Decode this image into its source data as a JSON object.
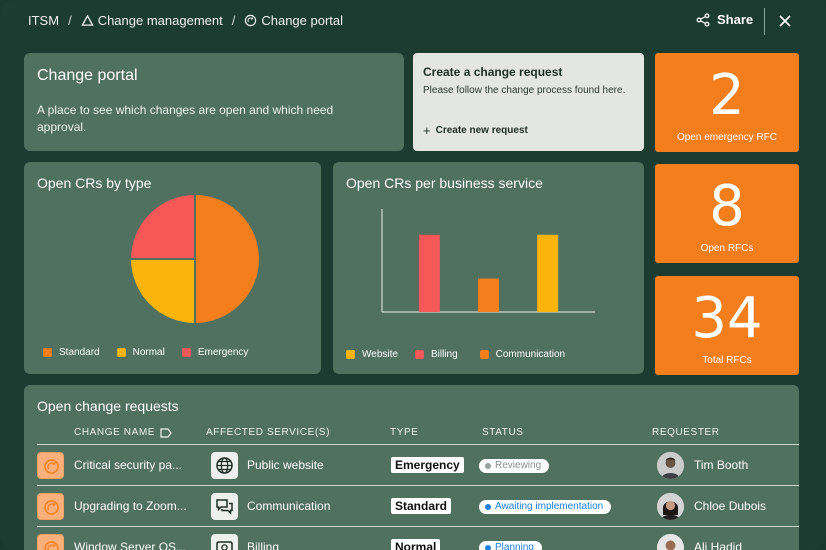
{
  "breadcrumb": {
    "root": "ITSM",
    "separator": "/",
    "level1": "Change management",
    "level2": "Change portal"
  },
  "header": {
    "share_label": "Share"
  },
  "portal": {
    "title": "Change portal",
    "description": "A place to see which changes are open and which need approval."
  },
  "create_request": {
    "title": "Create a change request",
    "text": "Please follow the change process found here.",
    "button_label": "Create new request"
  },
  "kpis": [
    {
      "value": "2",
      "label": "Open emergency RFC"
    },
    {
      "value": "8",
      "label": "Open RFCs"
    },
    {
      "value": "34",
      "label": "Total RFCs"
    }
  ],
  "colors": {
    "standard": "#f47e1c",
    "normal": "#fbb40c",
    "emergency": "#f65757",
    "kpi": "#f47e1c"
  },
  "pie_chart": {
    "title": "Open CRs by type"
  },
  "bar_chart": {
    "title": "Open CRs per business service"
  },
  "chart_data": [
    {
      "type": "pie",
      "title": "Open CRs by type",
      "labels": [
        "Standard",
        "Normal",
        "Emergency"
      ],
      "values": [
        4,
        2,
        2
      ],
      "colors": [
        "#f47e1c",
        "#fbb40c",
        "#f65757"
      ],
      "legend": "bottom"
    },
    {
      "type": "bar",
      "title": "Open CRs per business service",
      "series": [
        {
          "name": "Website",
          "values": [
            0,
            3,
            0,
            0,
            3
          ],
          "color": "#fbb40c"
        },
        {
          "name": "Billing",
          "values": [
            3,
            0,
            0,
            0,
            0
          ],
          "color": "#f65757"
        },
        {
          "name": "Communication",
          "values": [
            0,
            0,
            1.3,
            0,
            0
          ],
          "color": "#f47e1c"
        }
      ],
      "bars": [
        {
          "series": "Billing",
          "value": 3,
          "color": "#f65757"
        },
        {
          "series": "Communication",
          "value": 1.3,
          "color": "#f47e1c"
        },
        {
          "series": "Website",
          "value": 3,
          "color": "#fbb40c"
        }
      ],
      "ylim": [
        0,
        4
      ],
      "grid": false,
      "legend": "bottom"
    }
  ],
  "table": {
    "title": "Open change requests",
    "columns": {
      "name": "CHANGE NAME",
      "service": "AFFECTED SERVICE(S)",
      "type": "TYPE",
      "status": "STATUS",
      "requester": "REQUESTER"
    },
    "rows": [
      {
        "name": "Critical security pa...",
        "service": "Public website",
        "service_icon": "globe-icon",
        "type": "Emergency",
        "status": "Reviewing",
        "status_color": "#9aa0a0",
        "requester": "Tim Booth"
      },
      {
        "name": "Upgrading to Zoom...",
        "service": "Communication",
        "service_icon": "chat-icon",
        "type": "Standard",
        "status": "Awaiting implementation",
        "status_color": "#1d7fe0",
        "requester": "Chloe Dubois"
      },
      {
        "name": "Window Server OS...",
        "service": "Billing",
        "service_icon": "billing-icon",
        "type": "Normal",
        "status": "Planning",
        "status_color": "#1d7fe0",
        "requester": "Ali Hadid"
      }
    ]
  }
}
